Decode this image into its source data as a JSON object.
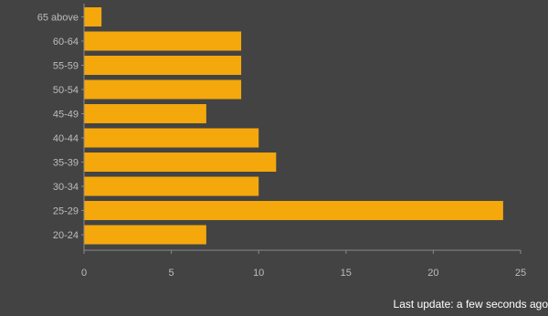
{
  "chart_data": {
    "type": "bar",
    "orientation": "horizontal",
    "categories": [
      "65 above",
      "60-64",
      "55-59",
      "50-54",
      "45-49",
      "40-44",
      "35-39",
      "30-34",
      "25-29",
      "20-24"
    ],
    "values": [
      1,
      9,
      9,
      9,
      7,
      10,
      11,
      10,
      24,
      7
    ],
    "xlim": [
      0,
      25
    ],
    "xticks": [
      "0",
      "5",
      "10",
      "15",
      "20",
      "25"
    ],
    "grid": false,
    "legend": "none",
    "title": "",
    "xlabel": "",
    "ylabel": ""
  },
  "colors": {
    "background": "#434343",
    "bar": "#f5a80c",
    "axis": "#8a8a8a",
    "label": "#bdbdbd",
    "footer": "#ffffff"
  },
  "footer": {
    "text": "Last update: a few seconds ago"
  }
}
